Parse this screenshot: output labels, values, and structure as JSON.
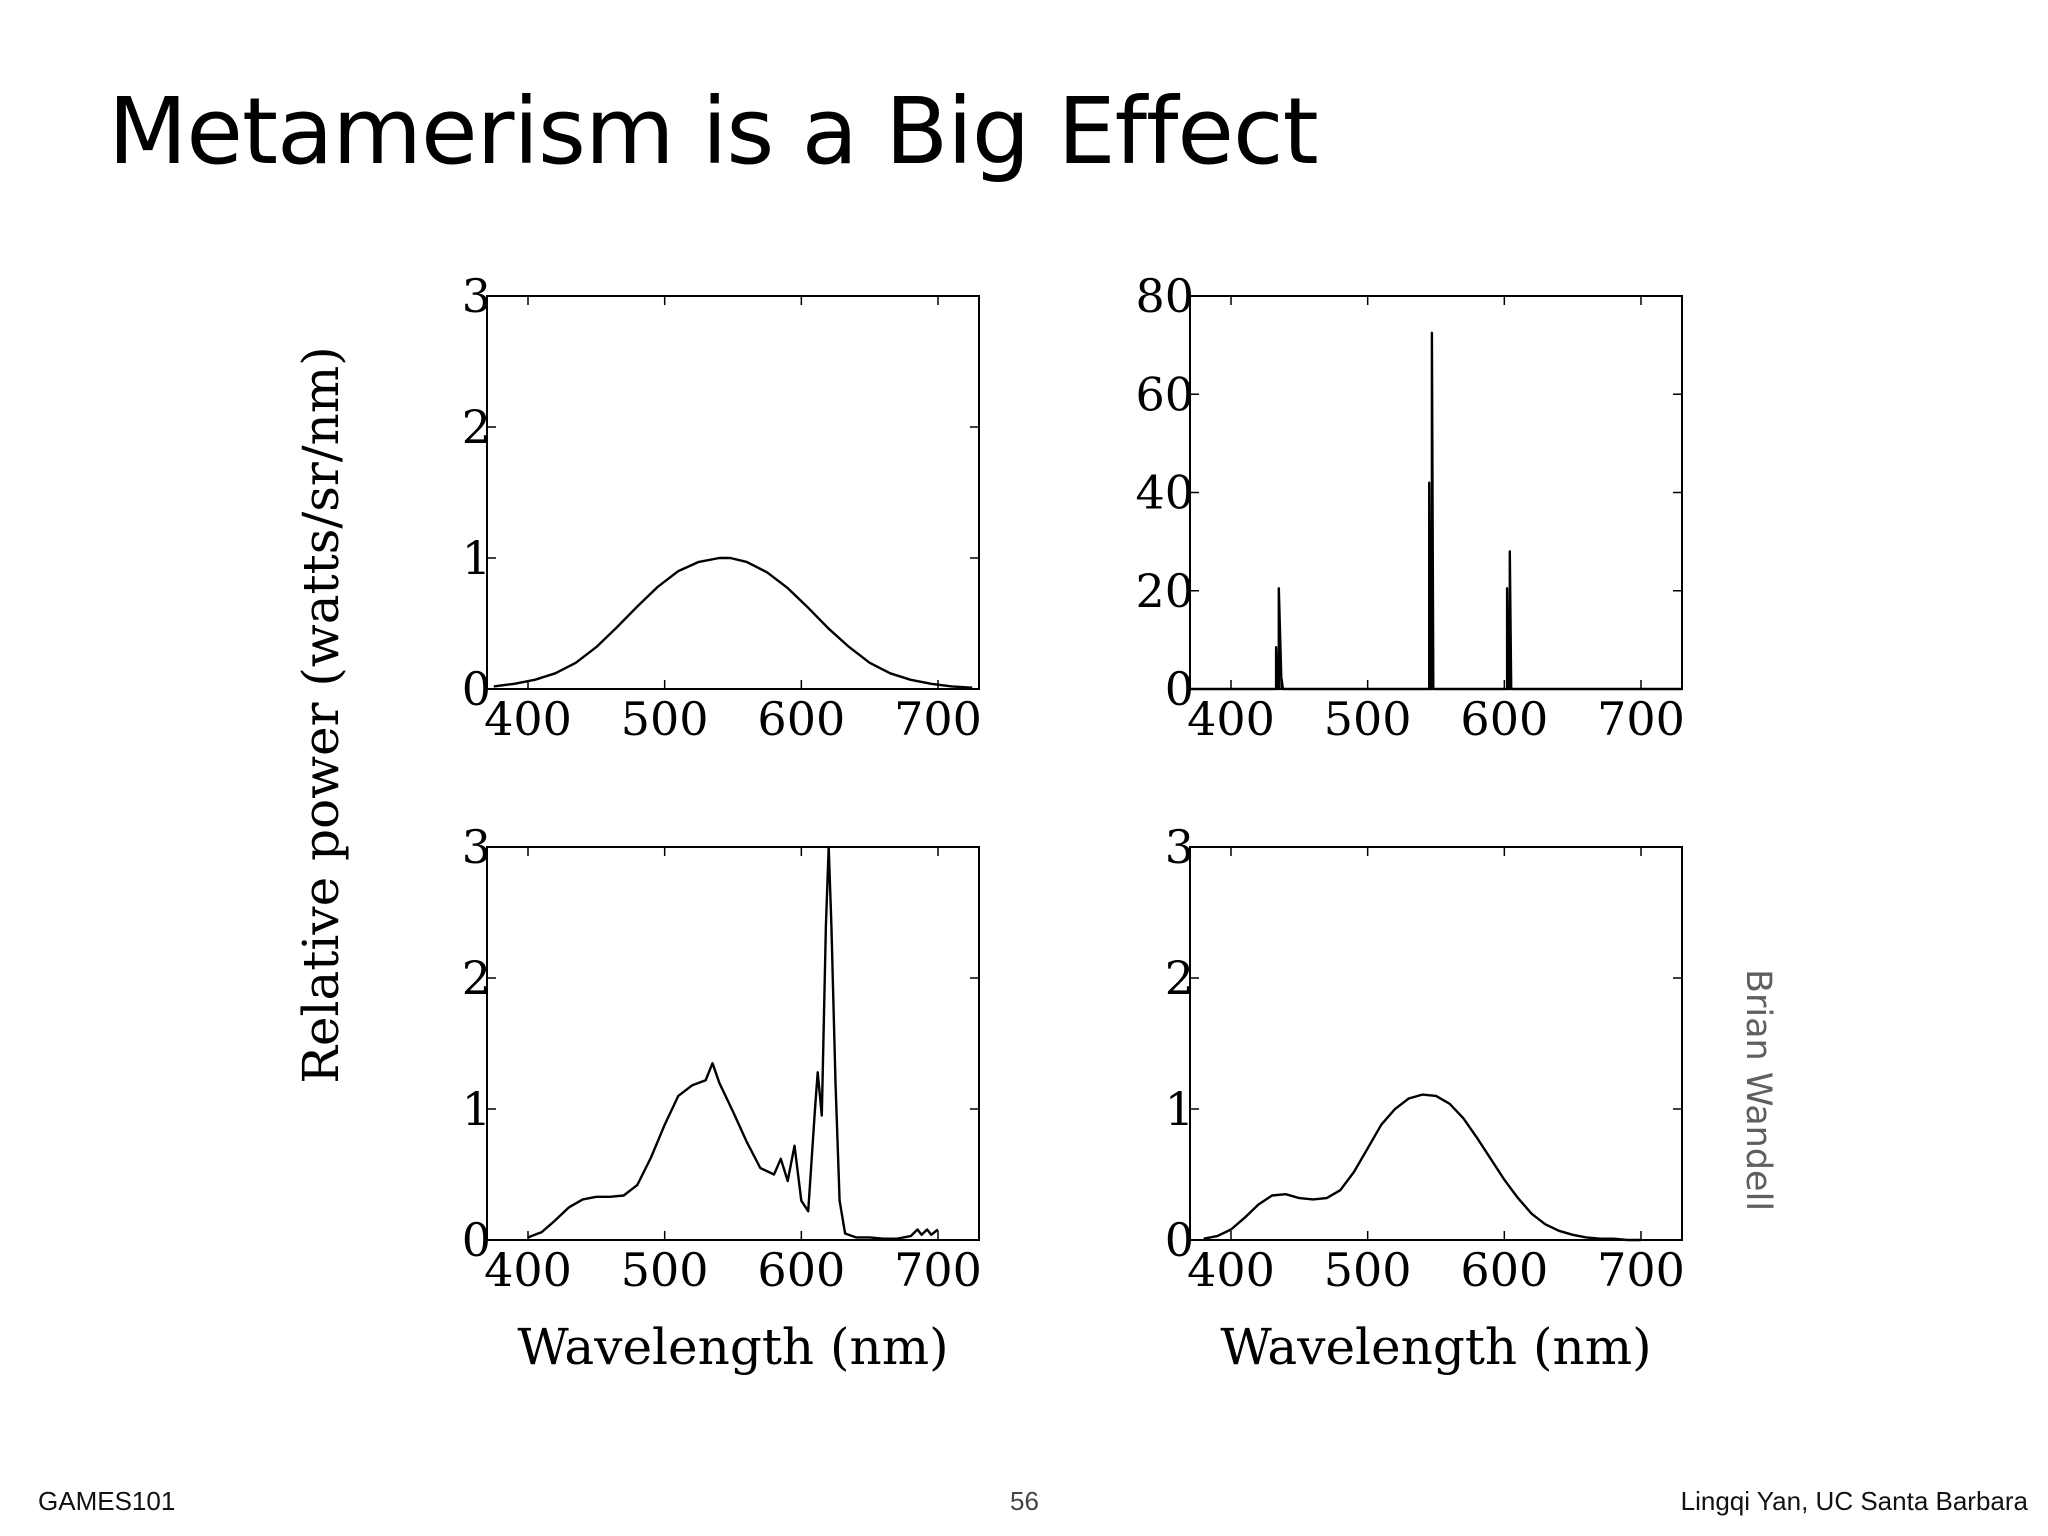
{
  "slide": {
    "title": "Metamerism is a Big Effect",
    "credit": "Brian Wandell",
    "footer_left": "GAMES101",
    "page_number": "56",
    "footer_right": "Lingqi Yan, UC Santa Barbara"
  },
  "chart_data": [
    {
      "type": "line",
      "panel": "top-left",
      "ylabel": "Relative power (watts/sr/nm)",
      "xlabel": "",
      "xlim": [
        370,
        730
      ],
      "ylim": [
        0,
        3
      ],
      "xticks": [
        400,
        500,
        600,
        700
      ],
      "yticks": [
        0,
        1,
        2,
        3
      ],
      "series": [
        {
          "x": [
            375,
            390,
            405,
            420,
            435,
            450,
            465,
            480,
            495,
            510,
            525,
            540,
            548,
            560,
            575,
            590,
            605,
            620,
            635,
            650,
            665,
            680,
            695,
            710,
            725
          ],
          "y": [
            0.02,
            0.04,
            0.07,
            0.12,
            0.2,
            0.32,
            0.47,
            0.63,
            0.78,
            0.9,
            0.97,
            1.0,
            1.0,
            0.97,
            0.89,
            0.77,
            0.62,
            0.46,
            0.32,
            0.2,
            0.12,
            0.07,
            0.04,
            0.02,
            0.01
          ]
        }
      ]
    },
    {
      "type": "line",
      "panel": "top-right",
      "xlabel": "",
      "xlim": [
        370,
        730
      ],
      "ylim": [
        0,
        80
      ],
      "xticks": [
        400,
        500,
        600,
        700
      ],
      "yticks": [
        0,
        20,
        40,
        60,
        80
      ],
      "series": [
        {
          "x": [
            370,
            433,
            433,
            434,
            435,
            435,
            437,
            437,
            438,
            545,
            545,
            546,
            547,
            547,
            548,
            602,
            602,
            603,
            604,
            604,
            605,
            730
          ],
          "y": [
            0,
            0,
            8.5,
            0,
            0,
            20.5,
            0,
            2,
            0,
            0,
            42,
            0,
            0,
            72.5,
            0,
            0,
            20.5,
            0,
            0,
            28,
            0,
            0
          ]
        }
      ]
    },
    {
      "type": "line",
      "panel": "bottom-left",
      "xlabel": "Wavelength (nm)",
      "xlim": [
        370,
        730
      ],
      "ylim": [
        0,
        3
      ],
      "xticks": [
        400,
        500,
        600,
        700
      ],
      "yticks": [
        0,
        1,
        2,
        3
      ],
      "series": [
        {
          "x": [
            400,
            410,
            420,
            430,
            440,
            450,
            460,
            470,
            480,
            490,
            500,
            510,
            520,
            530,
            535,
            540,
            550,
            560,
            570,
            580,
            585,
            590,
            595,
            600,
            605,
            610,
            612,
            615,
            618,
            620,
            622,
            625,
            628,
            632,
            640,
            650,
            660,
            670,
            680,
            685,
            688,
            692,
            695,
            700
          ],
          "y": [
            0.02,
            0.06,
            0.15,
            0.25,
            0.31,
            0.33,
            0.33,
            0.34,
            0.42,
            0.63,
            0.88,
            1.1,
            1.18,
            1.22,
            1.35,
            1.2,
            0.98,
            0.75,
            0.55,
            0.5,
            0.62,
            0.45,
            0.72,
            0.3,
            0.22,
            1.0,
            1.28,
            0.95,
            2.4,
            3.0,
            2.4,
            1.2,
            0.3,
            0.05,
            0.02,
            0.02,
            0.01,
            0.01,
            0.03,
            0.08,
            0.04,
            0.08,
            0.04,
            0.08
          ]
        }
      ]
    },
    {
      "type": "line",
      "panel": "bottom-right",
      "xlabel": "Wavelength (nm)",
      "xlim": [
        370,
        730
      ],
      "ylim": [
        0,
        3
      ],
      "xticks": [
        400,
        500,
        600,
        700
      ],
      "yticks": [
        0,
        1,
        2,
        3
      ],
      "series": [
        {
          "x": [
            380,
            390,
            400,
            410,
            420,
            430,
            440,
            450,
            460,
            470,
            480,
            490,
            500,
            510,
            520,
            530,
            540,
            550,
            560,
            570,
            580,
            590,
            600,
            610,
            620,
            630,
            640,
            650,
            660,
            670,
            680,
            690,
            700
          ],
          "y": [
            0.01,
            0.03,
            0.08,
            0.17,
            0.27,
            0.34,
            0.35,
            0.32,
            0.31,
            0.32,
            0.38,
            0.52,
            0.7,
            0.88,
            1.0,
            1.08,
            1.11,
            1.1,
            1.04,
            0.93,
            0.78,
            0.62,
            0.46,
            0.32,
            0.2,
            0.12,
            0.07,
            0.04,
            0.02,
            0.01,
            0.01,
            0.0,
            0.0
          ]
        }
      ]
    }
  ]
}
